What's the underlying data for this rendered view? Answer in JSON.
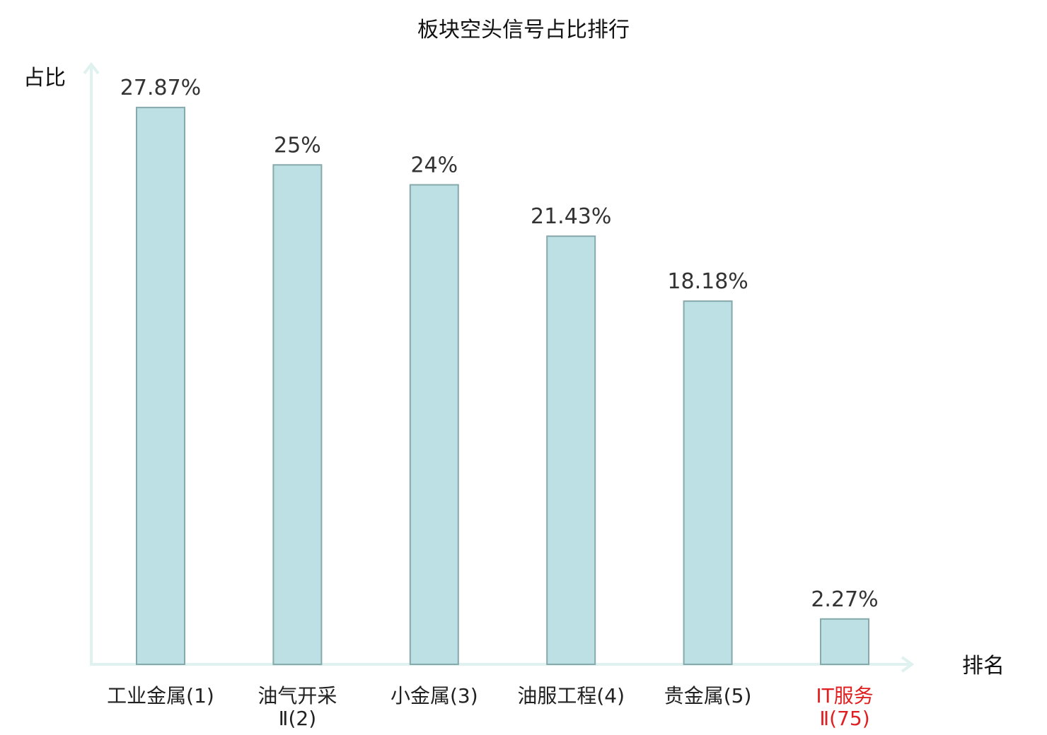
{
  "chart_data": {
    "type": "bar",
    "title": "板块空头信号占比排行",
    "ylabel": "占比",
    "xlabel": "排名",
    "ylim": [
      0,
      30
    ],
    "categories": [
      [
        "工业金属(1)"
      ],
      [
        "油气开采",
        "Ⅱ(2)"
      ],
      [
        "小金属(3)"
      ],
      [
        "油服工程(4)"
      ],
      [
        "贵金属(5)"
      ],
      [
        "IT服务",
        "Ⅱ(75)"
      ]
    ],
    "values": [
      27.87,
      25,
      24,
      21.43,
      18.18,
      2.27
    ],
    "value_labels": [
      "27.87%",
      "25%",
      "24%",
      "21.43%",
      "18.18%",
      "2.27%"
    ],
    "highlight_index": 5,
    "grid": false,
    "legend": "none"
  },
  "colors": {
    "bar_fill": "#bce0e3",
    "bar_stroke": "#86a9ab",
    "axis": "#dff2ef",
    "highlight_text": "#e02020",
    "value_text": "#333333"
  }
}
